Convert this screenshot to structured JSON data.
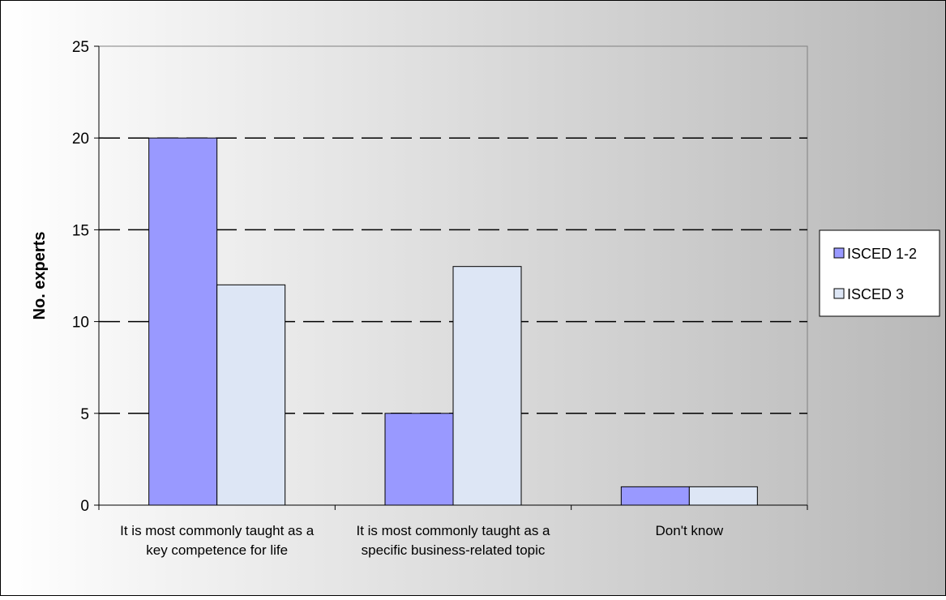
{
  "chart_data": {
    "type": "bar",
    "title": "",
    "xlabel": "",
    "ylabel": "No. experts",
    "ylim": [
      0,
      25
    ],
    "yticks": [
      0,
      5,
      10,
      15,
      20,
      25
    ],
    "grid": "dashed horizontal",
    "legend_position": "right",
    "categories": [
      [
        "It is most commonly taught as a",
        "key competence for life"
      ],
      [
        "It is most commonly taught as a",
        "specific business-related topic"
      ],
      [
        "Don't know"
      ]
    ],
    "series": [
      {
        "name": "ISCED 1-2",
        "values": [
          20,
          5,
          1
        ],
        "color": "#9999ff"
      },
      {
        "name": "ISCED 3",
        "values": [
          12,
          13,
          1
        ],
        "color": "#dde6f5"
      }
    ]
  },
  "colors": {
    "background_left": "#ffffff",
    "background_right": "#b8b8b8",
    "plot_border": "#808080",
    "bar_border": "#000000"
  }
}
